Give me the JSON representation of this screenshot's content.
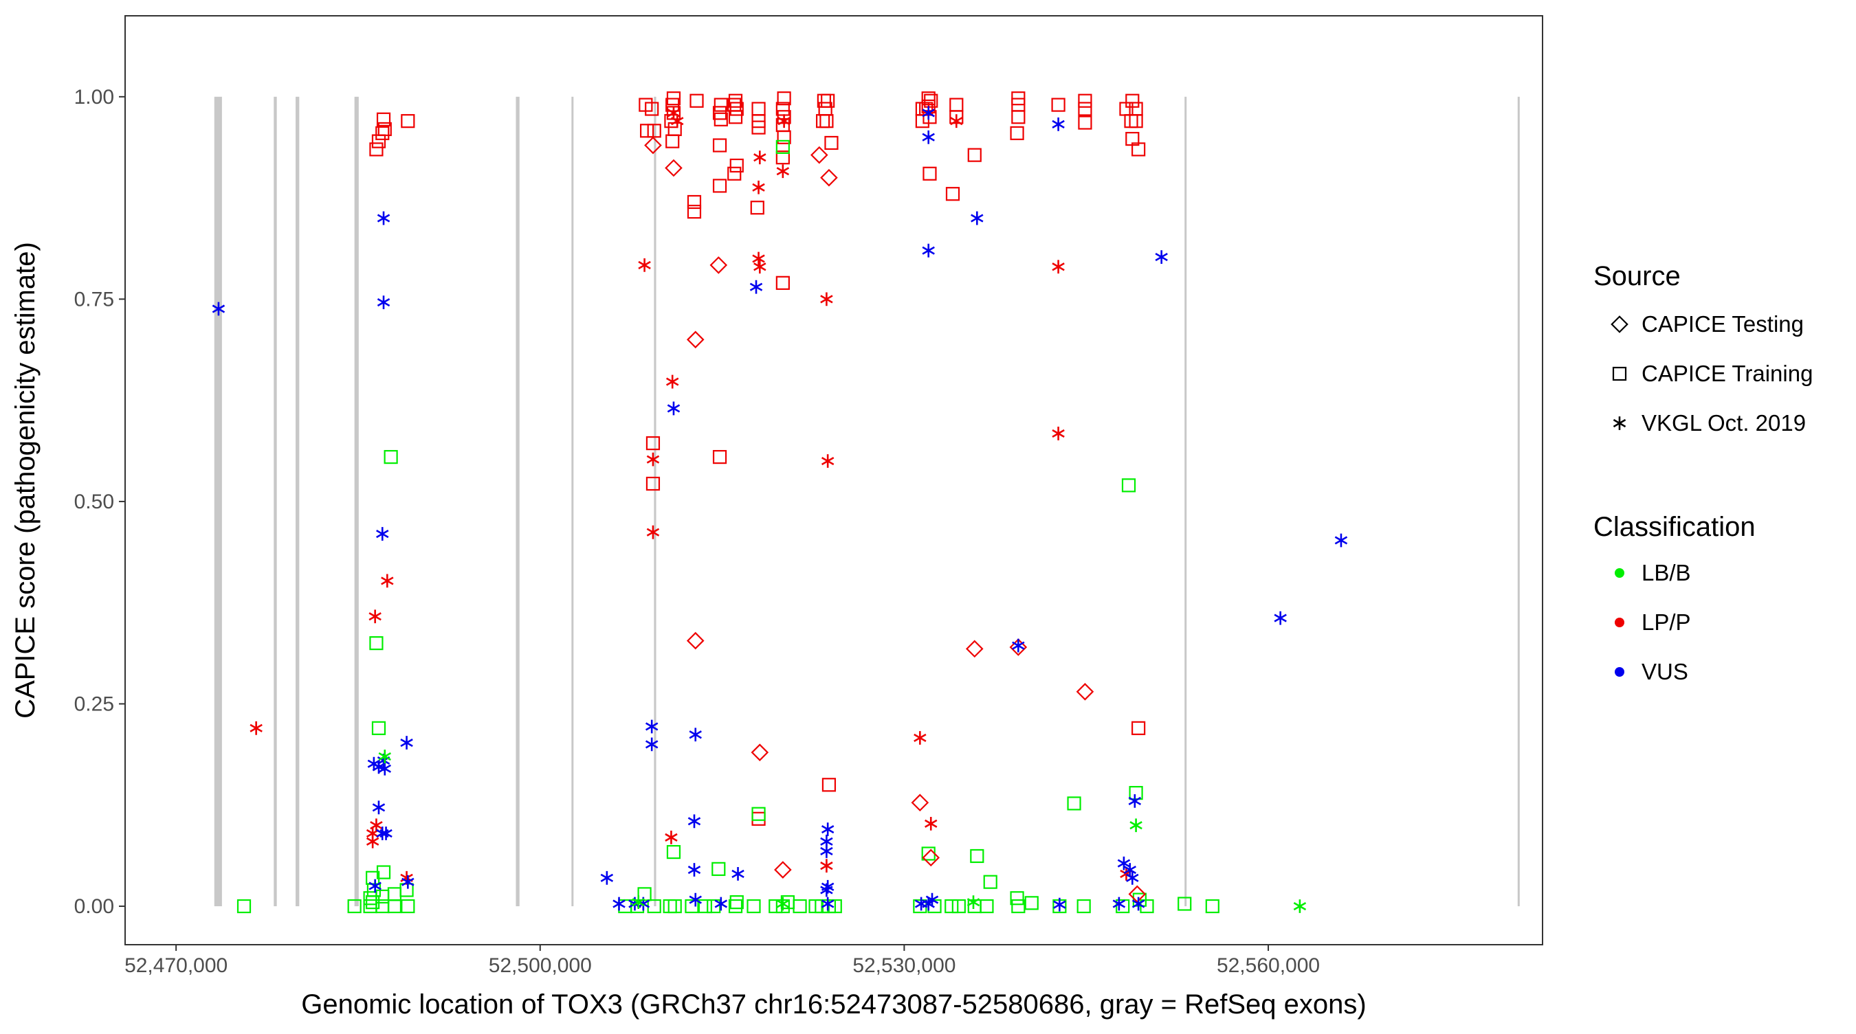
{
  "chart_data": {
    "type": "scatter",
    "title": "",
    "xlabel": "Genomic location of TOX3 (GRCh37 chr16:52473087-52580686, gray = RefSeq exons)",
    "ylabel": "CAPICE score (pathogenicity estimate)",
    "xlim": [
      52465800,
      52582600
    ],
    "ylim": [
      -0.0475,
      1.1
    ],
    "x_ticks": [
      52470000,
      52500000,
      52530000,
      52560000
    ],
    "x_tick_labels": [
      "52,470,000",
      "52,500,000",
      "52,530,000",
      "52,560,000"
    ],
    "y_ticks": [
      0,
      0.25,
      0.5,
      0.75,
      1.0
    ],
    "y_tick_labels": [
      "0.00",
      "0.25",
      "0.50",
      "0.75",
      "1.00"
    ],
    "grid": false,
    "exons": [
      {
        "start": 52473150,
        "end": 52473780
      },
      {
        "start": 52478050,
        "end": 52478300
      },
      {
        "start": 52479850,
        "end": 52480150
      },
      {
        "start": 52484700,
        "end": 52485050
      },
      {
        "start": 52498000,
        "end": 52498300
      },
      {
        "start": 52502580,
        "end": 52502750
      },
      {
        "start": 52509380,
        "end": 52509560
      },
      {
        "start": 52553100,
        "end": 52553250
      },
      {
        "start": 52580550,
        "end": 52580700
      }
    ],
    "legend": {
      "position": "right",
      "source_title": "Source",
      "source_items": [
        {
          "label": "CAPICE Testing",
          "shape": "diamond"
        },
        {
          "label": "CAPICE Training",
          "shape": "square"
        },
        {
          "label": "VKGL Oct. 2019",
          "shape": "asterisk"
        }
      ],
      "class_title": "Classification",
      "class_items": [
        {
          "label": "LB/B",
          "color": "#00ee00"
        },
        {
          "label": "LP/P",
          "color": "#ee0000"
        },
        {
          "label": "VUS",
          "color": "#0000ee"
        }
      ]
    },
    "colors": {
      "LB/B": "#00ee00",
      "LP/P": "#ee0000",
      "VUS": "#0000ee"
    },
    "series": [
      {
        "source": "CAPICE Training",
        "classification": "LP/P",
        "points": [
          [
            52486500,
            0.935
          ],
          [
            52486700,
            0.945
          ],
          [
            52487000,
            0.955
          ],
          [
            52487200,
            0.96
          ],
          [
            52487100,
            0.972
          ],
          [
            52489100,
            0.97
          ],
          [
            52508700,
            0.99
          ],
          [
            52509200,
            0.985
          ],
          [
            52508800,
            0.958
          ],
          [
            52509400,
            0.958
          ],
          [
            52511000,
            0.998
          ],
          [
            52510900,
            0.99
          ],
          [
            52511000,
            0.98
          ],
          [
            52510800,
            0.97
          ],
          [
            52511100,
            0.96
          ],
          [
            52510900,
            0.945
          ],
          [
            52512900,
            0.995
          ],
          [
            52514900,
            0.99
          ],
          [
            52514800,
            0.98
          ],
          [
            52514900,
            0.972
          ],
          [
            52516100,
            0.995
          ],
          [
            52516000,
            0.99
          ],
          [
            52516200,
            0.985
          ],
          [
            52516100,
            0.975
          ],
          [
            52514800,
            0.94
          ],
          [
            52516200,
            0.915
          ],
          [
            52516000,
            0.905
          ],
          [
            52514800,
            0.89
          ],
          [
            52512700,
            0.87
          ],
          [
            52512700,
            0.858
          ],
          [
            52518000,
            0.985
          ],
          [
            52518000,
            0.97
          ],
          [
            52518000,
            0.962
          ],
          [
            52520100,
            0.998
          ],
          [
            52520000,
            0.985
          ],
          [
            52520100,
            0.975
          ],
          [
            52520000,
            0.965
          ],
          [
            52520100,
            0.95
          ],
          [
            52520000,
            0.925
          ],
          [
            52517900,
            0.863
          ],
          [
            52520000,
            0.77
          ],
          [
            52523400,
            0.995
          ],
          [
            52523700,
            0.995
          ],
          [
            52523500,
            0.985
          ],
          [
            52523300,
            0.97
          ],
          [
            52523600,
            0.97
          ],
          [
            52524000,
            0.943
          ],
          [
            52531500,
            0.985
          ],
          [
            52532000,
            0.998
          ],
          [
            52532200,
            0.995
          ],
          [
            52532000,
            0.988
          ],
          [
            52531800,
            0.985
          ],
          [
            52532100,
            0.975
          ],
          [
            52531500,
            0.97
          ],
          [
            52534300,
            0.99
          ],
          [
            52534300,
            0.975
          ],
          [
            52532100,
            0.905
          ],
          [
            52534000,
            0.88
          ],
          [
            52535800,
            0.928
          ],
          [
            52539400,
            0.998
          ],
          [
            52539400,
            0.99
          ],
          [
            52539400,
            0.975
          ],
          [
            52539300,
            0.955
          ],
          [
            52542700,
            0.99
          ],
          [
            52544900,
            0.995
          ],
          [
            52544900,
            0.985
          ],
          [
            52544900,
            0.968
          ],
          [
            52548300,
            0.985
          ],
          [
            52548800,
            0.995
          ],
          [
            52549100,
            0.985
          ],
          [
            52549100,
            0.97
          ],
          [
            52548700,
            0.97
          ],
          [
            52548800,
            0.948
          ],
          [
            52549300,
            0.935
          ],
          [
            52549300,
            0.22
          ],
          [
            52509300,
            0.572
          ],
          [
            52509300,
            0.522
          ],
          [
            52514800,
            0.555
          ],
          [
            52518000,
            0.108
          ],
          [
            52523800,
            0.15
          ]
        ]
      },
      {
        "source": "CAPICE Training",
        "classification": "LB/B",
        "points": [
          [
            52475600,
            0
          ],
          [
            52484700,
            0
          ],
          [
            52486000,
            0
          ],
          [
            52487000,
            0
          ],
          [
            52488000,
            0
          ],
          [
            52489100,
            0
          ],
          [
            52486200,
            0.005
          ],
          [
            52486000,
            0.01
          ],
          [
            52487000,
            0.012
          ],
          [
            52488000,
            0.015
          ],
          [
            52486300,
            0.02
          ],
          [
            52486200,
            0.035
          ],
          [
            52487100,
            0.042
          ],
          [
            52489000,
            0.02
          ],
          [
            52486500,
            0.325
          ],
          [
            52487700,
            0.555
          ],
          [
            52486700,
            0.22
          ],
          [
            52507000,
            0
          ],
          [
            52508000,
            0
          ],
          [
            52508600,
            0.015
          ],
          [
            52509400,
            0
          ],
          [
            52510700,
            0
          ],
          [
            52511100,
            0
          ],
          [
            52512500,
            0
          ],
          [
            52513600,
            0
          ],
          [
            52514300,
            0
          ],
          [
            52516100,
            0
          ],
          [
            52516200,
            0.005
          ],
          [
            52517600,
            0
          ],
          [
            52519400,
            0
          ],
          [
            52520000,
            0
          ],
          [
            52520400,
            0.005
          ],
          [
            52521400,
            0
          ],
          [
            52522700,
            0
          ],
          [
            52523200,
            0
          ],
          [
            52523800,
            0
          ],
          [
            52524300,
            0
          ],
          [
            52511000,
            0.067
          ],
          [
            52514700,
            0.046
          ],
          [
            52518000,
            0.114
          ],
          [
            52520000,
            0.938
          ],
          [
            52531300,
            0
          ],
          [
            52532500,
            0
          ],
          [
            52533900,
            0
          ],
          [
            52534500,
            0
          ],
          [
            52535800,
            0
          ],
          [
            52536800,
            0
          ],
          [
            52539400,
            0
          ],
          [
            52539300,
            0.01
          ],
          [
            52540500,
            0.004
          ],
          [
            52542800,
            0
          ],
          [
            52544800,
            0
          ],
          [
            52532000,
            0.065
          ],
          [
            52536000,
            0.062
          ],
          [
            52537100,
            0.03
          ],
          [
            52544000,
            0.127
          ],
          [
            52548500,
            0.52
          ],
          [
            52549100,
            0.14
          ],
          [
            52548000,
            0
          ],
          [
            52549400,
            0.008
          ],
          [
            52550000,
            0
          ],
          [
            52553100,
            0.003
          ],
          [
            52555400,
            0
          ]
        ]
      },
      {
        "source": "CAPICE Testing",
        "classification": "LP/P",
        "points": [
          [
            52509300,
            0.94
          ],
          [
            52511000,
            0.912
          ],
          [
            52514700,
            0.792
          ],
          [
            52512800,
            0.7
          ],
          [
            52512800,
            0.328
          ],
          [
            52518100,
            0.19
          ],
          [
            52520000,
            0.045
          ],
          [
            52523000,
            0.928
          ],
          [
            52523800,
            0.9
          ],
          [
            52531300,
            0.128
          ],
          [
            52532200,
            0.06
          ],
          [
            52535800,
            0.318
          ],
          [
            52539400,
            0.32
          ],
          [
            52544900,
            0.265
          ],
          [
            52549200,
            0.015
          ]
        ]
      },
      {
        "source": "VKGL Oct. 2019",
        "classification": "LP/P",
        "points": [
          [
            52476600,
            0.22
          ],
          [
            52486200,
            0.08
          ],
          [
            52486200,
            0.09
          ],
          [
            52486500,
            0.1
          ],
          [
            52486400,
            0.358
          ],
          [
            52487400,
            0.402
          ],
          [
            52489000,
            0.035
          ],
          [
            52508600,
            0.792
          ],
          [
            52509300,
            0.552
          ],
          [
            52509300,
            0.462
          ],
          [
            52510900,
            0.648
          ],
          [
            52510800,
            0.085
          ],
          [
            52511000,
            0.98
          ],
          [
            52511300,
            0.97
          ],
          [
            52518000,
            0.8
          ],
          [
            52518100,
            0.79
          ],
          [
            52518100,
            0.925
          ],
          [
            52518000,
            0.888
          ],
          [
            52520000,
            0.908
          ],
          [
            52520100,
            0.97
          ],
          [
            52523600,
            0.75
          ],
          [
            52523700,
            0.55
          ],
          [
            52523600,
            0.05
          ],
          [
            52531300,
            0.208
          ],
          [
            52532200,
            0.102
          ],
          [
            52534300,
            0.97
          ],
          [
            52542700,
            0.79
          ],
          [
            52542700,
            0.584
          ],
          [
            52548300,
            0.04
          ]
        ]
      },
      {
        "source": "VKGL Oct. 2019",
        "classification": "VUS",
        "points": [
          [
            52473500,
            0.738
          ],
          [
            52487100,
            0.85
          ],
          [
            52487100,
            0.746
          ],
          [
            52487000,
            0.46
          ],
          [
            52486700,
            0.122
          ],
          [
            52486300,
            0.176
          ],
          [
            52486700,
            0.172
          ],
          [
            52487100,
            0.18
          ],
          [
            52487200,
            0.17
          ],
          [
            52487000,
            0.09
          ],
          [
            52487300,
            0.09
          ],
          [
            52486400,
            0.025
          ],
          [
            52489000,
            0.202
          ],
          [
            52489100,
            0.03
          ],
          [
            52505500,
            0.035
          ],
          [
            52506500,
            0.003
          ],
          [
            52507800,
            0.003
          ],
          [
            52508500,
            0.003
          ],
          [
            52509200,
            0.222
          ],
          [
            52509200,
            0.2
          ],
          [
            52511000,
            0.615
          ],
          [
            52512800,
            0.212
          ],
          [
            52512700,
            0.105
          ],
          [
            52512700,
            0.045
          ],
          [
            52512800,
            0.008
          ],
          [
            52514900,
            0.003
          ],
          [
            52516300,
            0.04
          ],
          [
            52517800,
            0.765
          ],
          [
            52523700,
            0.095
          ],
          [
            52523600,
            0.08
          ],
          [
            52523600,
            0.068
          ],
          [
            52523700,
            0.024
          ],
          [
            52523600,
            0.02
          ],
          [
            52523700,
            0.003
          ],
          [
            52532000,
            0.81
          ],
          [
            52532000,
            0.95
          ],
          [
            52532000,
            0.98
          ],
          [
            52531400,
            0.003
          ],
          [
            52532000,
            0.003
          ],
          [
            52532300,
            0.008
          ],
          [
            52536000,
            0.85
          ],
          [
            52539400,
            0.322
          ],
          [
            52542700,
            0.966
          ],
          [
            52542800,
            0.002
          ],
          [
            52547700,
            0.003
          ],
          [
            52548100,
            0.053
          ],
          [
            52548600,
            0.045
          ],
          [
            52548800,
            0.035
          ],
          [
            52549000,
            0.13
          ],
          [
            52549300,
            0.003
          ],
          [
            52551200,
            0.802
          ],
          [
            52561000,
            0.356
          ],
          [
            52566000,
            0.452
          ]
        ]
      },
      {
        "source": "VKGL Oct. 2019",
        "classification": "LB/B",
        "points": [
          [
            52487200,
            0.185
          ],
          [
            52549100,
            0.1
          ],
          [
            52562600,
            0
          ],
          [
            52508100,
            0.005
          ],
          [
            52520000,
            0.003
          ],
          [
            52535700,
            0.005
          ]
        ]
      }
    ]
  }
}
